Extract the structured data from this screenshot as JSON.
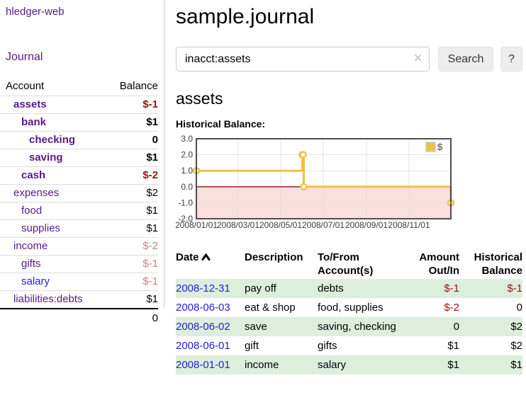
{
  "app": {
    "brand": "hledger-web"
  },
  "colors": {
    "purple_link": "#551A8B",
    "blue_link": "#2323d1",
    "negative_strong": "#9c1111",
    "negative_muted": "#c28484",
    "row_green": "#ddeedd",
    "chart_gold": "#EDC240",
    "chart_negative_zone": "#fbdede",
    "chart_zero_line": "#8b1510"
  },
  "sidebar": {
    "journal_link": "Journal",
    "accounts_table": {
      "headers": {
        "account": "Account",
        "balance": "Balance"
      },
      "rows": [
        {
          "name": "assets",
          "depth": 1,
          "bold": true,
          "balance": "$-1",
          "balance_style": "neg-strong",
          "link_style": "purple"
        },
        {
          "name": "bank",
          "depth": 2,
          "bold": true,
          "balance": "$1",
          "balance_style": "",
          "link_style": "purple"
        },
        {
          "name": "checking",
          "depth": 3,
          "bold": true,
          "balance": "0",
          "balance_style": "",
          "link_style": "purple"
        },
        {
          "name": "saving",
          "depth": 3,
          "bold": true,
          "balance": "$1",
          "balance_style": "",
          "link_style": "purple"
        },
        {
          "name": "cash",
          "depth": 2,
          "bold": true,
          "balance": "$-2",
          "balance_style": "neg-strong",
          "link_style": "purple"
        },
        {
          "name": "expenses",
          "depth": 1,
          "bold": false,
          "balance": "$2",
          "balance_style": "",
          "link_style": "purple"
        },
        {
          "name": "food",
          "depth": 2,
          "bold": false,
          "balance": "$1",
          "balance_style": "",
          "link_style": "purple"
        },
        {
          "name": "supplies",
          "depth": 2,
          "bold": false,
          "balance": "$1",
          "balance_style": "",
          "link_style": "purple"
        },
        {
          "name": "income",
          "depth": 1,
          "bold": false,
          "balance": "$-2",
          "balance_style": "neg-muted",
          "link_style": "purple"
        },
        {
          "name": "gifts",
          "depth": 2,
          "bold": false,
          "balance": "$-1",
          "balance_style": "neg-muted",
          "link_style": "purple"
        },
        {
          "name": "salary",
          "depth": 2,
          "bold": false,
          "balance": "$-1",
          "balance_style": "neg-muted",
          "link_style": "blue"
        },
        {
          "name": "liabilities:debts",
          "depth": 1,
          "bold": false,
          "balance": "$1",
          "balance_style": "",
          "link_style": "purple"
        }
      ],
      "total": "0"
    }
  },
  "header": {
    "title": "sample.journal"
  },
  "search": {
    "query": "inacct:assets",
    "clear_icon": "✕",
    "search_button": "Search",
    "help_button": "?"
  },
  "register": {
    "heading": "assets",
    "chart_title": "Historical Balance:"
  },
  "chart_data": {
    "type": "line",
    "step": true,
    "title": "Historical Balance",
    "series": [
      {
        "name": "$",
        "color": "#EDC240",
        "points": [
          [
            "2008-01-01",
            1
          ],
          [
            "2008-06-01",
            2
          ],
          [
            "2008-06-02",
            2
          ],
          [
            "2008-06-03",
            0
          ],
          [
            "2008-12-31",
            -1
          ]
        ]
      }
    ],
    "x_range": [
      "2008-01-01",
      "2008-12-31"
    ],
    "x_ticks": [
      "2008/01/01",
      "2008/03/01",
      "2008/05/01",
      "2008/07/01",
      "2008/09/01",
      "2008/11/01"
    ],
    "y_ticks": [
      3.0,
      2.0,
      1.0,
      0.0,
      -1.0,
      -2.0
    ],
    "ylim": [
      -2,
      3
    ],
    "grid": true,
    "legend": {
      "label": "$",
      "position": "top-right"
    },
    "negative_zone_color": "#fbdede",
    "zero_line_color": "#8b1510"
  },
  "transactions": {
    "headers": {
      "date": "Date",
      "description": "Description",
      "tofrom": "To/From Account(s)",
      "amount": "Amount Out/In",
      "balance": "Historical Balance"
    },
    "rows": [
      {
        "date": "2008-12-31",
        "description": "pay off",
        "accounts": "debts",
        "amount": "$-1",
        "amount_negative": true,
        "balance": "$-1",
        "balance_negative": true
      },
      {
        "date": "2008-06-03",
        "description": "eat & shop",
        "accounts": "food, supplies",
        "amount": "$-2",
        "amount_negative": true,
        "balance": "0",
        "balance_negative": false
      },
      {
        "date": "2008-06-02",
        "description": "save",
        "accounts": "saving, checking",
        "amount": "0",
        "amount_negative": false,
        "balance": "$2",
        "balance_negative": false
      },
      {
        "date": "2008-06-01",
        "description": "gift",
        "accounts": "gifts",
        "amount": "$1",
        "amount_negative": false,
        "balance": "$2",
        "balance_negative": false
      },
      {
        "date": "2008-01-01",
        "description": "income",
        "accounts": "salary",
        "amount": "$1",
        "amount_negative": false,
        "balance": "$1",
        "balance_negative": false
      }
    ]
  }
}
